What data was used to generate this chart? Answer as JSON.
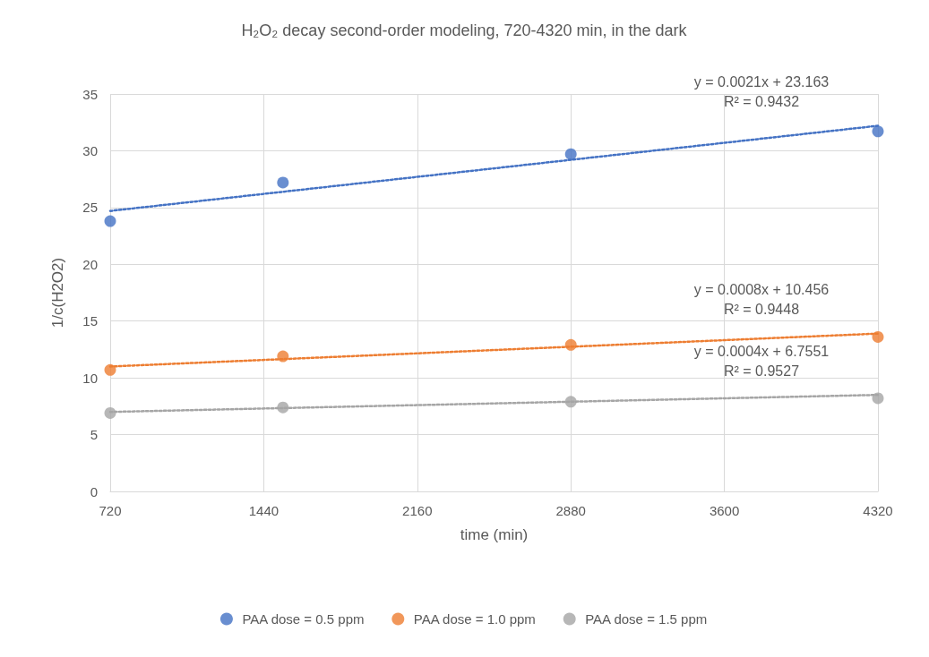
{
  "chart_data": {
    "type": "scatter",
    "title": "H₂O₂ decay second-order modeling, 720-4320 min, in the dark",
    "xlabel": "time (min)",
    "ylabel": "1/c(H2O2)",
    "x": [
      720,
      1530,
      2880,
      4320
    ],
    "series": [
      {
        "name": "PAA dose = 0.5 ppm",
        "color": "#4472c4",
        "values": [
          23.8,
          27.2,
          29.7,
          31.7
        ],
        "marker": "circle"
      },
      {
        "name": "PAA dose = 1.0 ppm",
        "color": "#ed7d31",
        "values": [
          10.7,
          11.9,
          12.9,
          13.6
        ],
        "marker": "circle"
      },
      {
        "name": "PAA dose = 1.5 ppm",
        "color": "#a5a5a5",
        "values": [
          6.9,
          7.4,
          7.9,
          8.2
        ],
        "marker": "circle"
      },
      {
        "type": "line",
        "color": "#4472c4",
        "values": [
          24.7,
          null,
          null,
          32.2
        ],
        "marker": "none",
        "line_style": "dotted"
      },
      {
        "type": "line",
        "color": "#ed7d31",
        "values": [
          11.0,
          null,
          null,
          13.9
        ],
        "marker": "none",
        "line_style": "dotted"
      },
      {
        "type": "line",
        "color": "#a5a5a5",
        "values": [
          7.0,
          null,
          null,
          8.5
        ],
        "marker": "none",
        "line_style": "dotted"
      }
    ],
    "annotations": [
      "y = 0.0021x + 23.163\nR² = 0.9432",
      "y = 0.0008x + 10.456\nR² = 0.9448",
      "y = 0.0004x + 6.7551\nR² = 0.9527"
    ],
    "xlim": [
      720,
      4320
    ],
    "xticks": [
      720,
      1440,
      2160,
      2880,
      3600,
      4320
    ],
    "ylim": [
      0,
      35
    ],
    "yticks": [
      0,
      5,
      10,
      15,
      20,
      25,
      30,
      35
    ],
    "grid": true,
    "legend": "bottom"
  }
}
